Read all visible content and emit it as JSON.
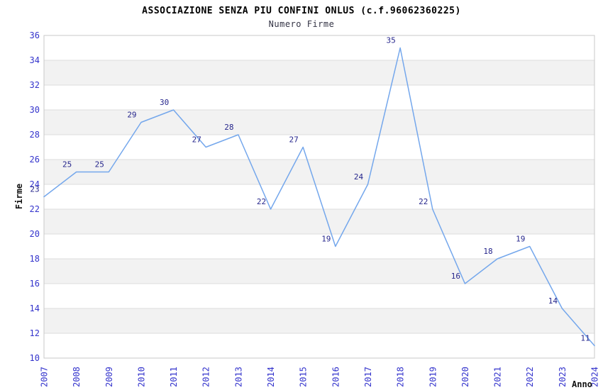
{
  "title": "ASSOCIAZIONE SENZA PIU CONFINI ONLUS (c.f.96062360225)",
  "subtitle": "Numero Firme",
  "chart_data": {
    "type": "line",
    "title": "ASSOCIAZIONE SENZA PIU CONFINI ONLUS (c.f.96062360225)",
    "subtitle": "Numero Firme",
    "x": [
      2007,
      2008,
      2009,
      2010,
      2011,
      2012,
      2013,
      2014,
      2015,
      2016,
      2017,
      2018,
      2019,
      2020,
      2021,
      2022,
      2023,
      2024
    ],
    "values": [
      23,
      25,
      25,
      29,
      30,
      27,
      28,
      22,
      27,
      19,
      24,
      35,
      22,
      16,
      18,
      19,
      14,
      11
    ],
    "xlabel": "Anno",
    "ylabel": "Firme",
    "ylim": [
      10,
      36
    ],
    "ytick_step": 2,
    "grid": "horizontal-alternating-bands",
    "legend": "none",
    "point_labels_visible": true,
    "colors": {
      "line": "#74A7EC",
      "tick_label": "#3333CC",
      "point_label": "#26268C",
      "band_gray": "#F2F2F2",
      "band_white": "#FFFFFF",
      "gridline": "#DCDCDC",
      "plot_border": "#C8C8C8",
      "title": "#000000",
      "subtitle": "#333344",
      "axis_label": "#111111"
    }
  }
}
